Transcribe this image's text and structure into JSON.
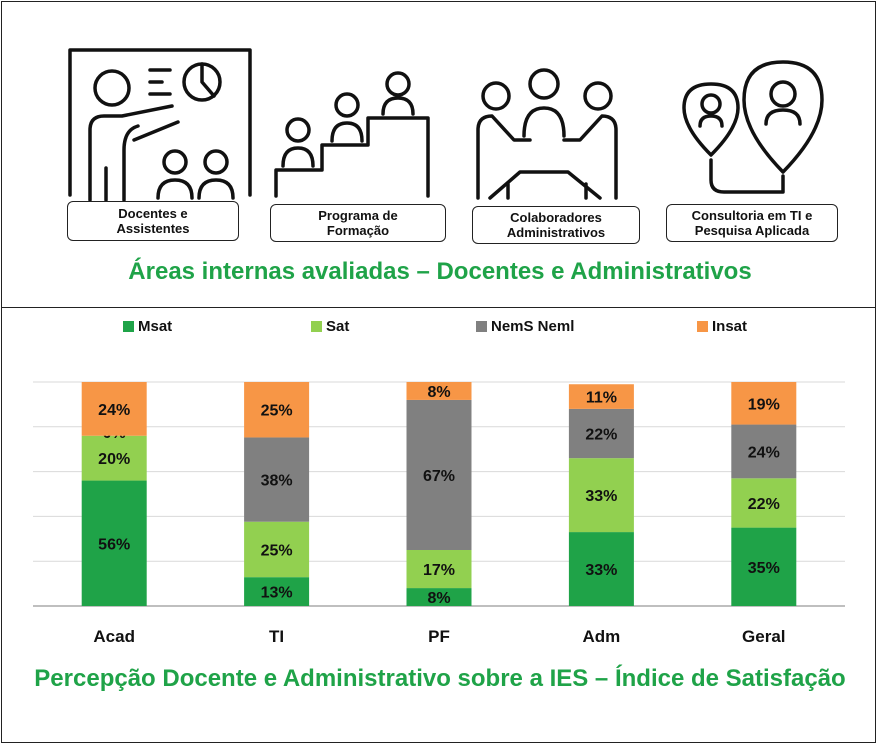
{
  "top_section": {
    "cards": [
      {
        "label": "Docentes e\nAssistentes",
        "icon": "teacher-presentation-icon"
      },
      {
        "label": "Programa de\nFormação",
        "icon": "stairs-people-icon"
      },
      {
        "label": "Colaboradores\nAdministrativos",
        "icon": "meeting-group-icon"
      },
      {
        "label": "Consultoria em TI e\nPesquisa Aplicada",
        "icon": "location-pins-icon"
      }
    ],
    "title": "Áreas internas avaliadas – Docentes e Administrativos"
  },
  "bottom_title": "Percepção Docente e Administrativo sobre a IES – Índice de Satisfação",
  "colors": {
    "msat": "#1fa348",
    "sat": "#92d050",
    "nems": "#808080",
    "insat": "#f79646",
    "title_green": "#1fa348"
  },
  "chart_data": {
    "type": "bar",
    "stacked": true,
    "categories": [
      "Acad",
      "TI",
      "PF",
      "Adm",
      "Geral"
    ],
    "series": [
      {
        "name": "Msat",
        "values": [
          56,
          13,
          8,
          33,
          35
        ],
        "labels": [
          "56%",
          "13%",
          "8%",
          "33%",
          "35%"
        ]
      },
      {
        "name": "Sat",
        "values": [
          20,
          25,
          17,
          33,
          22
        ],
        "labels": [
          "20%",
          "25%",
          "17%",
          "33%",
          "22%"
        ]
      },
      {
        "name": "NemS Neml",
        "values": [
          0,
          38,
          67,
          22,
          24
        ],
        "labels": [
          "0%",
          "38%",
          "67%",
          "22%",
          "24%"
        ]
      },
      {
        "name": "Insat",
        "values": [
          24,
          25,
          8,
          11,
          19
        ],
        "labels": [
          "24%",
          "25%",
          "8%",
          "11%",
          "19%"
        ]
      }
    ],
    "ylim": [
      0,
      100
    ],
    "grid": true,
    "legend": "top"
  }
}
